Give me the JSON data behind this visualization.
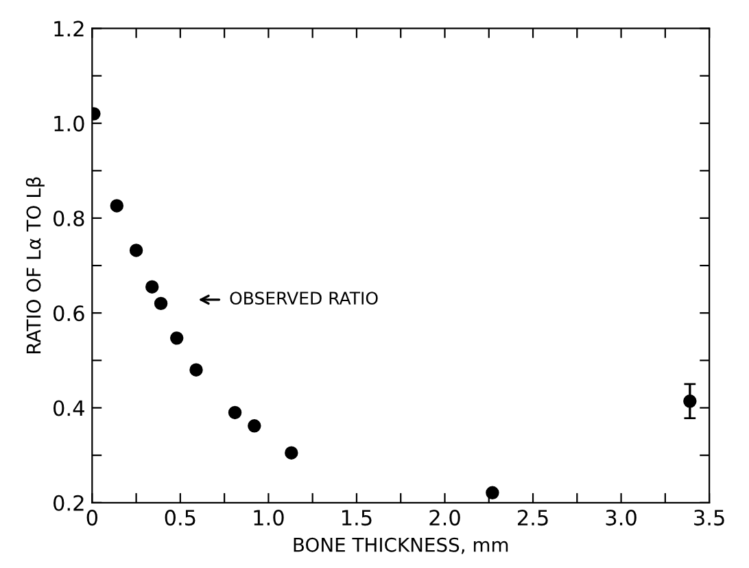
{
  "chart_data": {
    "type": "scatter",
    "xlabel": "BONE THICKNESS, mm",
    "ylabel": "RATIO OF Lα TO Lβ",
    "x": [
      0.01,
      0.14,
      0.25,
      0.34,
      0.39,
      0.48,
      0.59,
      0.81,
      0.92,
      1.13,
      2.27,
      3.39
    ],
    "series": [
      {
        "color": "#000000",
        "marker": "circle",
        "values": [
          1.02,
          0.826,
          0.732,
          0.655,
          0.62,
          0.547,
          0.48,
          0.39,
          0.362,
          0.305,
          0.221,
          0.414
        ],
        "errors": [
          null,
          null,
          null,
          null,
          null,
          null,
          null,
          null,
          null,
          null,
          null,
          0.036
        ]
      }
    ],
    "xlim": [
      0,
      3.5
    ],
    "ylim": [
      0.2,
      1.2
    ],
    "xticks": [
      0,
      {
        "value": 0.25,
        "label": null
      },
      {
        "value": 0.5,
        "label": "0.5"
      },
      {
        "value": 0.75,
        "label": null
      },
      {
        "value": 1,
        "label": "1.0"
      },
      {
        "value": 1.25,
        "label": null
      },
      {
        "value": 1.5,
        "label": "1.5"
      },
      {
        "value": 1.75,
        "label": null
      },
      {
        "value": 2,
        "label": "2.0"
      },
      {
        "value": 2.25,
        "label": null
      },
      {
        "value": 2.5,
        "label": "2.5"
      },
      {
        "value": 2.75,
        "label": null
      },
      {
        "value": 3,
        "label": "3.0"
      },
      {
        "value": 3.25,
        "label": null
      },
      {
        "value": 3.5,
        "label": "3.5"
      }
    ],
    "yticks": [
      0.2,
      {
        "value": 0.3,
        "label": null
      },
      0.4,
      {
        "value": 0.5,
        "label": null
      },
      0.6,
      {
        "value": 0.7,
        "label": null
      },
      0.8,
      {
        "value": 0.9,
        "label": null
      },
      {
        "value": 1,
        "label": "1.0"
      },
      {
        "value": 1.1,
        "label": null
      },
      1.2
    ],
    "annotations": [
      "OBSERVED RATIO"
    ],
    "grid": false
  }
}
